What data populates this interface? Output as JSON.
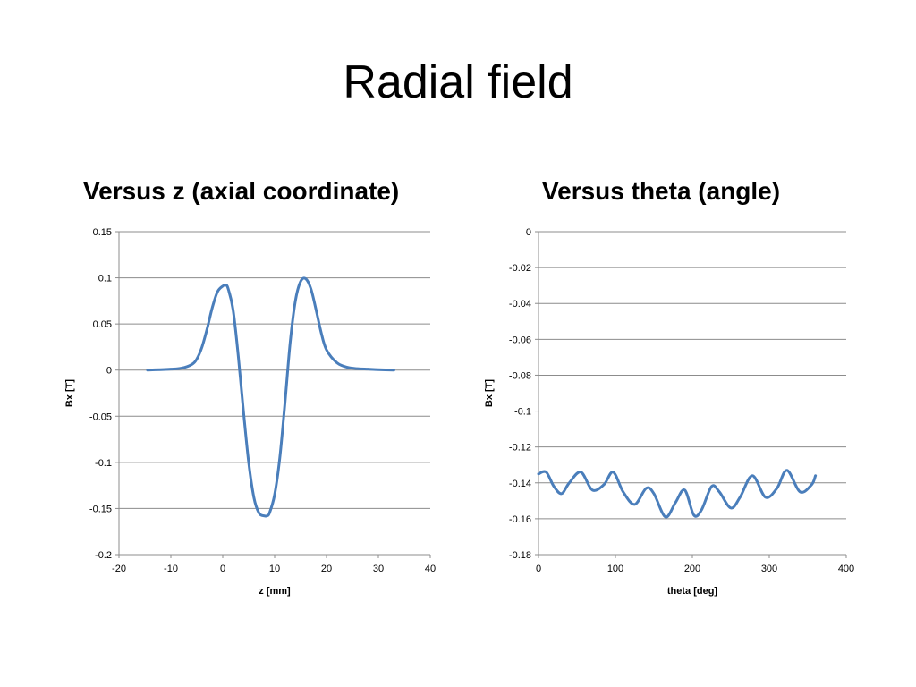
{
  "slide": {
    "title": "Radial field"
  },
  "chart_data": [
    {
      "type": "line",
      "title": "Versus z (axial coordinate)",
      "xlabel": "z [mm]",
      "ylabel": "Bx [T]",
      "xlim": [
        -20,
        40
      ],
      "ylim": [
        -0.2,
        0.15
      ],
      "xticks": [
        "-20",
        "-10",
        "0",
        "10",
        "20",
        "30",
        "40"
      ],
      "yticks": [
        "0.15",
        "0.1",
        "0.05",
        "0",
        "-0.05",
        "-0.1",
        "-0.15",
        "-0.2"
      ],
      "grid": true,
      "legend": "none",
      "series_color": "#4a7ebb",
      "series": [
        {
          "x": [
            -14.5,
            -12,
            -10,
            -8,
            -6,
            -5,
            -4,
            -3,
            -2,
            -1,
            0,
            0.5,
            1,
            2,
            3,
            4,
            5,
            6,
            7,
            8,
            8.5,
            9,
            10,
            11,
            12,
            13,
            14,
            15,
            16,
            17,
            18,
            19,
            20,
            22,
            24,
            26,
            28,
            30,
            33
          ],
          "y": [
            0.0,
            0.0005,
            0.001,
            0.002,
            0.006,
            0.012,
            0.025,
            0.045,
            0.068,
            0.085,
            0.091,
            0.092,
            0.089,
            0.065,
            0.015,
            -0.045,
            -0.1,
            -0.138,
            -0.155,
            -0.158,
            -0.158,
            -0.155,
            -0.135,
            -0.095,
            -0.035,
            0.03,
            0.075,
            0.096,
            0.099,
            0.088,
            0.065,
            0.04,
            0.022,
            0.008,
            0.003,
            0.0015,
            0.001,
            0.0005,
            0.0
          ]
        }
      ]
    },
    {
      "type": "line",
      "title": "Versus theta (angle)",
      "xlabel": "theta [deg]",
      "ylabel": "Bx [T]",
      "xlim": [
        0,
        400
      ],
      "ylim": [
        -0.18,
        0
      ],
      "xticks": [
        "0",
        "100",
        "200",
        "300",
        "400"
      ],
      "yticks": [
        "0",
        "-0.02",
        "-0.04",
        "-0.06",
        "-0.08",
        "-0.1",
        "-0.12",
        "-0.14",
        "-0.16",
        "-0.18"
      ],
      "grid": true,
      "legend": "none",
      "series_color": "#4a7ebb",
      "series": [
        {
          "x": [
            0,
            10,
            20,
            30,
            40,
            55,
            70,
            85,
            97,
            110,
            125,
            140,
            150,
            165,
            178,
            190,
            202,
            212,
            225,
            235,
            250,
            262,
            278,
            295,
            310,
            323,
            340,
            355,
            360
          ],
          "y": [
            -0.135,
            -0.134,
            -0.142,
            -0.146,
            -0.14,
            -0.134,
            -0.144,
            -0.141,
            -0.134,
            -0.145,
            -0.152,
            -0.143,
            -0.146,
            -0.159,
            -0.151,
            -0.144,
            -0.158,
            -0.155,
            -0.142,
            -0.145,
            -0.154,
            -0.148,
            -0.136,
            -0.148,
            -0.143,
            -0.133,
            -0.145,
            -0.141,
            -0.136
          ]
        }
      ]
    }
  ]
}
